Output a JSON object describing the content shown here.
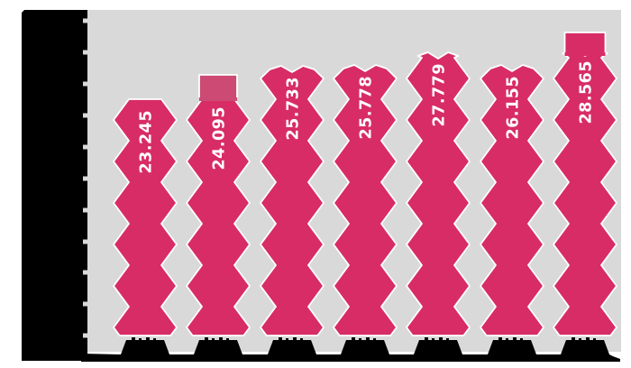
{
  "chart": {
    "background": "#ffffff",
    "plot_background": "#d9d9d9",
    "bar_color": "#d82c67",
    "bar_partial_segment_color": "#cc4a73",
    "bar_outline_color": "#ffffff",
    "value_label_color": "#ffffff",
    "redaction_color": "#000000"
  },
  "chart_data": {
    "type": "bar",
    "title": "",
    "xlabel": "",
    "ylabel": "",
    "categories": [
      "",
      "",
      "",
      "",
      "",
      "",
      ""
    ],
    "values": [
      23.245,
      24.095,
      25.733,
      25.778,
      27.779,
      26.155,
      28.565
    ],
    "data_labels": [
      "23.245",
      "24.095",
      "25.733",
      "25.778",
      "27.779",
      "26.155",
      "28.565"
    ],
    "series": [
      {
        "name": "",
        "values": [
          23.245,
          24.095,
          25.733,
          25.778,
          27.779,
          26.155,
          28.565
        ]
      }
    ],
    "legend": false,
    "grid": false,
    "x_axis_labels_obscured": true,
    "y_axis_labels_obscured": true,
    "y_tick_count": 11,
    "bar_style": "zigzag-ribbon-pictograph"
  }
}
